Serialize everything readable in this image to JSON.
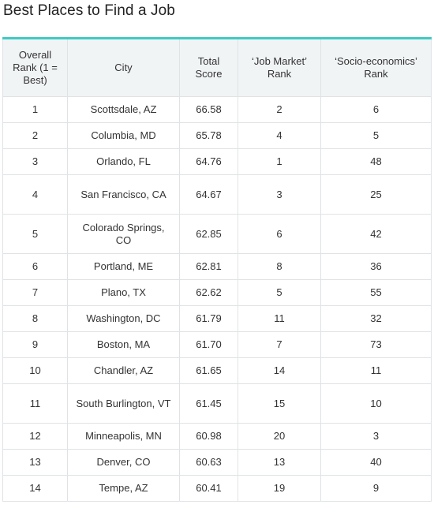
{
  "title": "Best Places to Find a Job",
  "columns": [
    "Overall Rank (1 = Best)",
    "City",
    "Total Score",
    "‘Job Market’ Rank",
    "‘Socio-economics’ Rank"
  ],
  "rows": [
    {
      "rank": "1",
      "city": "Scottsdale, AZ",
      "score": "66.58",
      "job_market": "2",
      "socio": "6"
    },
    {
      "rank": "2",
      "city": "Columbia, MD",
      "score": "65.78",
      "job_market": "4",
      "socio": "5"
    },
    {
      "rank": "3",
      "city": "Orlando, FL",
      "score": "64.76",
      "job_market": "1",
      "socio": "48"
    },
    {
      "rank": "4",
      "city": "San Francisco, CA",
      "score": "64.67",
      "job_market": "3",
      "socio": "25"
    },
    {
      "rank": "5",
      "city": "Colorado Springs, CO",
      "score": "62.85",
      "job_market": "6",
      "socio": "42"
    },
    {
      "rank": "6",
      "city": "Portland, ME",
      "score": "62.81",
      "job_market": "8",
      "socio": "36"
    },
    {
      "rank": "7",
      "city": "Plano, TX",
      "score": "62.62",
      "job_market": "5",
      "socio": "55"
    },
    {
      "rank": "8",
      "city": "Washington, DC",
      "score": "61.79",
      "job_market": "11",
      "socio": "32"
    },
    {
      "rank": "9",
      "city": "Boston, MA",
      "score": "61.70",
      "job_market": "7",
      "socio": "73"
    },
    {
      "rank": "10",
      "city": "Chandler, AZ",
      "score": "61.65",
      "job_market": "14",
      "socio": "11"
    },
    {
      "rank": "11",
      "city": "South Burlington, VT",
      "score": "61.45",
      "job_market": "15",
      "socio": "10"
    },
    {
      "rank": "12",
      "city": "Minneapolis, MN",
      "score": "60.98",
      "job_market": "20",
      "socio": "3"
    },
    {
      "rank": "13",
      "city": "Denver, CO",
      "score": "60.63",
      "job_market": "13",
      "socio": "40"
    },
    {
      "rank": "14",
      "city": "Tempe, AZ",
      "score": "60.41",
      "job_market": "19",
      "socio": "9"
    }
  ],
  "colors": {
    "header_accent": "#3ecbc4",
    "header_background": "#f1f4f5",
    "border": "#dfe3e6"
  }
}
